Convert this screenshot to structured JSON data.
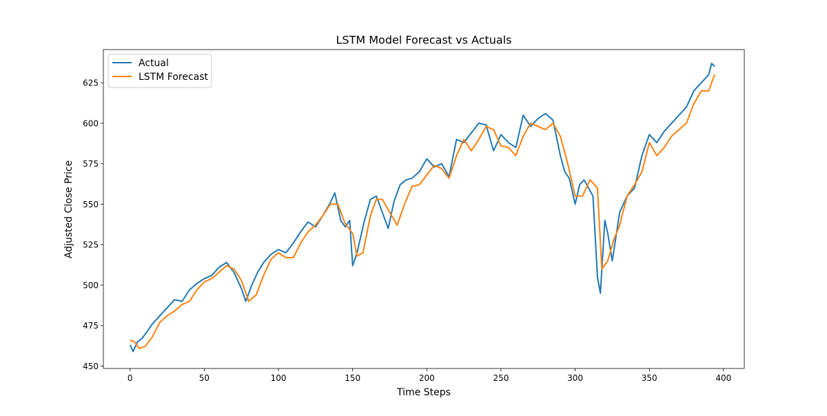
{
  "chart_data": {
    "type": "line",
    "title": "LSTM Model Forecast vs Actuals",
    "xlabel": "Time Steps",
    "ylabel": "Adjusted Close Price",
    "xlim": [
      -18,
      414
    ],
    "ylim": [
      448.5,
      645.5
    ],
    "xticks": [
      0,
      50,
      100,
      150,
      200,
      250,
      300,
      350,
      400
    ],
    "yticks": [
      450,
      475,
      500,
      525,
      550,
      575,
      600,
      625
    ],
    "legend": "top-left",
    "grid": false,
    "series": [
      {
        "name": "Actual",
        "color": "#1f77b4",
        "x": [
          0,
          2,
          5,
          8,
          12,
          15,
          20,
          25,
          30,
          35,
          40,
          45,
          50,
          55,
          60,
          65,
          70,
          75,
          78,
          82,
          86,
          90,
          95,
          100,
          105,
          110,
          115,
          120,
          125,
          130,
          135,
          138,
          142,
          145,
          148,
          150,
          153,
          158,
          162,
          166,
          170,
          174,
          178,
          182,
          186,
          190,
          195,
          200,
          205,
          210,
          215,
          220,
          225,
          230,
          235,
          240,
          245,
          250,
          255,
          260,
          265,
          270,
          275,
          280,
          285,
          290,
          293,
          296,
          300,
          303,
          306,
          309,
          312,
          315,
          317,
          320,
          322,
          325,
          330,
          335,
          340,
          345,
          350,
          355,
          360,
          365,
          370,
          375,
          380,
          385,
          390,
          392,
          394
        ],
        "y": [
          463,
          459,
          465,
          467,
          472,
          476,
          481,
          486,
          491,
          490,
          497,
          501,
          504,
          506,
          511,
          514,
          508,
          498,
          490,
          500,
          508,
          514,
          519,
          522,
          520,
          526,
          533,
          539,
          536,
          543,
          551,
          557,
          540,
          536,
          540,
          512,
          520,
          540,
          553,
          555,
          545,
          535,
          552,
          562,
          565,
          566,
          570,
          578,
          573,
          575,
          567,
          590,
          588,
          594,
          600,
          599,
          583,
          593,
          588,
          585,
          605,
          598,
          603,
          606,
          602,
          580,
          570,
          566,
          550,
          562,
          565,
          560,
          555,
          505,
          495,
          540,
          532,
          515,
          545,
          555,
          560,
          580,
          593,
          588,
          595,
          600,
          605,
          610,
          620,
          625,
          630,
          637,
          635
        ]
      },
      {
        "name": "LSTM Forecast",
        "color": "#ff7f0e",
        "x": [
          0,
          3,
          6,
          10,
          15,
          20,
          25,
          30,
          35,
          40,
          45,
          50,
          55,
          60,
          65,
          70,
          75,
          80,
          85,
          90,
          95,
          100,
          105,
          110,
          115,
          120,
          125,
          130,
          135,
          140,
          145,
          150,
          153,
          157,
          162,
          166,
          170,
          175,
          180,
          185,
          190,
          195,
          200,
          205,
          210,
          215,
          220,
          225,
          230,
          235,
          240,
          245,
          250,
          255,
          260,
          265,
          270,
          275,
          280,
          285,
          290,
          295,
          300,
          305,
          310,
          315,
          318,
          322,
          326,
          330,
          335,
          340,
          345,
          350,
          355,
          360,
          365,
          370,
          375,
          380,
          385,
          390,
          394
        ],
        "y": [
          466,
          465,
          461,
          462,
          468,
          477,
          481,
          484,
          488,
          490,
          497,
          502,
          504,
          508,
          512,
          510,
          503,
          490,
          494,
          506,
          516,
          520,
          517,
          517,
          526,
          533,
          537,
          543,
          550,
          550,
          538,
          532,
          518,
          520,
          543,
          553,
          553,
          545,
          537,
          550,
          561,
          562,
          568,
          574,
          572,
          566,
          580,
          590,
          583,
          590,
          598,
          596,
          586,
          585,
          580,
          592,
          600,
          598,
          596,
          600,
          592,
          575,
          555,
          555,
          565,
          560,
          510,
          515,
          528,
          537,
          555,
          562,
          570,
          588,
          580,
          585,
          592,
          596,
          600,
          612,
          620,
          620,
          630
        ]
      }
    ]
  }
}
